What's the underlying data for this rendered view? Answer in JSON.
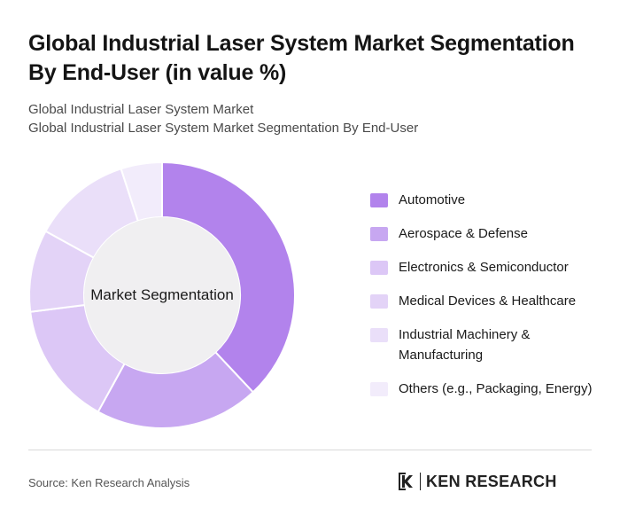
{
  "title": "Global Industrial Laser System Market Segmentation By End-User (in value %)",
  "subtitle": {
    "line1": "Global Industrial Laser System Market",
    "line2": "Global Industrial Laser System Market Segmentation By End-User"
  },
  "chart_data": {
    "type": "pie",
    "variant": "donut",
    "center_label": "Market Segmentation",
    "categories": [
      "Automotive",
      "Aerospace & Defense",
      "Electronics & Semiconductor",
      "Medical Devices & Healthcare",
      "Industrial Machinery & Manufacturing",
      "Others (e.g., Packaging, Energy)"
    ],
    "values": [
      38,
      20,
      15,
      10,
      12,
      5
    ],
    "colors": [
      "#b283ec",
      "#c7a7f1",
      "#dcc7f6",
      "#e3d3f7",
      "#eadff9",
      "#f2ecfb"
    ],
    "legend_position": "right"
  },
  "footer": {
    "source": "Source: Ken Research Analysis",
    "logo_text": "KEN RESEARCH"
  }
}
